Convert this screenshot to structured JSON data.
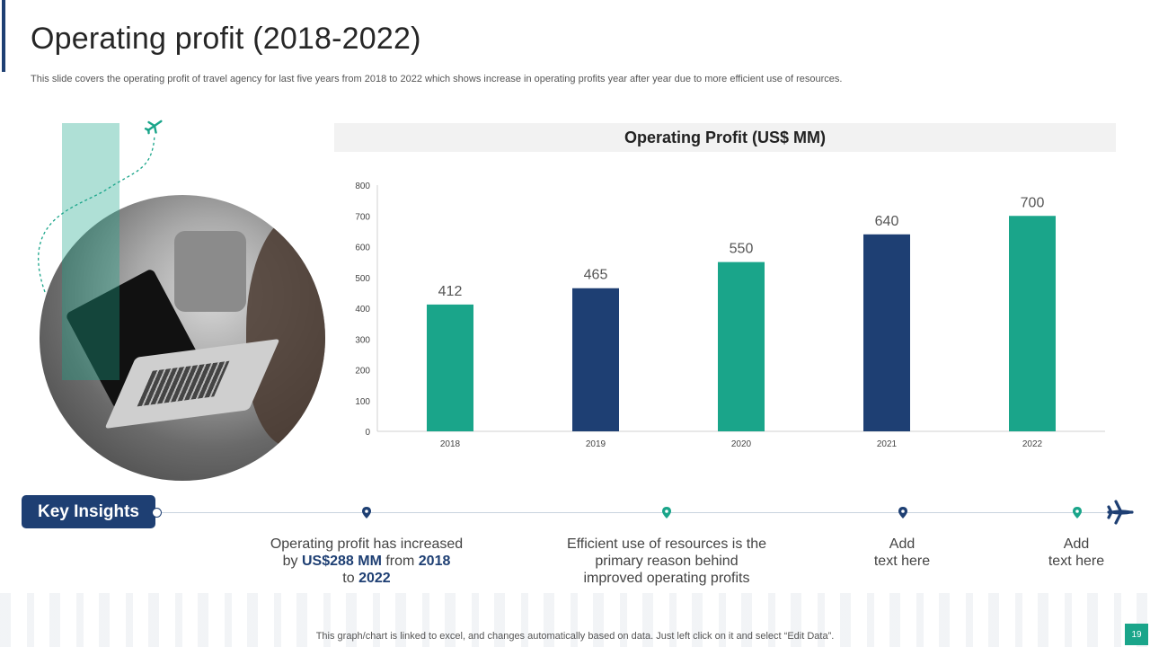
{
  "slide": {
    "title": "Operating profit (2018-2022)",
    "subtitle": "This slide covers the operating profit of travel  agency for last five  years from 2018 to  2022 which shows increase in operating profits year after year due to more efficient use of resources.",
    "footer_note": "This graph/chart is linked to excel,  and changes automatically based on data. Just left click on it and select “Edit Data”.",
    "page_number": "19"
  },
  "chart_data": {
    "type": "bar",
    "title": "Operating Profit (US$ MM)",
    "categories": [
      "2018",
      "2019",
      "2020",
      "2021",
      "2022"
    ],
    "values": [
      412,
      465,
      550,
      640,
      700
    ],
    "value_labels": [
      "412",
      "465",
      "550",
      "640",
      "700"
    ],
    "bar_colors": [
      "#1aa58a",
      "#1e3f73",
      "#1aa58a",
      "#1e3f73",
      "#1aa58a"
    ],
    "yticks": [
      "0",
      "100",
      "200",
      "300",
      "400",
      "500",
      "600",
      "700",
      "800"
    ],
    "ylim": [
      0,
      800
    ],
    "grid": false,
    "legend": "none"
  },
  "timeline": {
    "label": "Key Insights",
    "insights": [
      {
        "parts": [
          "Operating profit has increased",
          "by ",
          "US$288 MM",
          " from ",
          "2018",
          "to ",
          "2022"
        ]
      },
      {
        "line1": "Efficient use of resources is the",
        "line2": "primary reason behind",
        "line3": "improved operating profits"
      },
      {
        "line1": "Add",
        "line2": "text here"
      },
      {
        "line1": "Add",
        "line2": "text here"
      }
    ],
    "pin_colors": [
      "#1e3f73",
      "#1aa58a",
      "#1e3f73",
      "#1aa58a"
    ]
  },
  "colors": {
    "navy": "#1e3f73",
    "teal": "#1aa58a"
  },
  "icons": [
    "airplane-icon",
    "location-pin-icon"
  ]
}
